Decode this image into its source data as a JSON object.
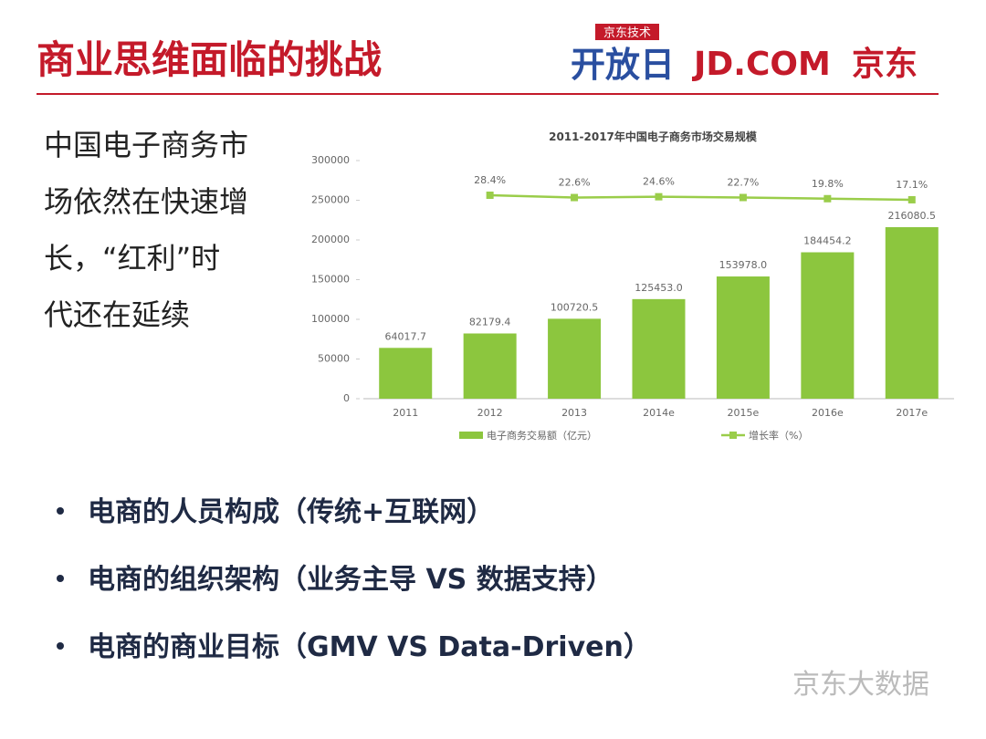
{
  "title": "商业思维面临的挑战",
  "logo": {
    "badge": "京东技术",
    "event": "开放日",
    "brand": "JD.COM",
    "brand_cn": "京东"
  },
  "side_text": [
    "中国电子商务市",
    "场依然在快速增",
    "长，“红利”时",
    "代还在延续"
  ],
  "bullets": [
    "电商的人员构成（传统+互联网）",
    "电商的组织架构（业务主导 VS 数据支持）",
    "电商的商业目标（GMV VS Data-Driven）"
  ],
  "watermark": "京东大数据",
  "chart_data": {
    "type": "bar",
    "title": "2011-2017年中国电子商务市场交易规模",
    "categories": [
      "2011",
      "2012",
      "2013",
      "2014e",
      "2015e",
      "2016e",
      "2017e"
    ],
    "series": [
      {
        "name": "电子商务交易额（亿元）",
        "type": "bar",
        "color": "#8cc63e",
        "values": [
          64017.7,
          82179.4,
          100720.5,
          125453.0,
          153978.0,
          184454.2,
          216080.5
        ],
        "value_labels": [
          "64017.7",
          "82179.4",
          "100720.5",
          "125453.0",
          "153978.0",
          "184454.2",
          "216080.5"
        ]
      },
      {
        "name": "增长率（%）",
        "type": "line",
        "axis": "y2",
        "color": "#9acd4a",
        "values": [
          null,
          28.4,
          22.6,
          24.6,
          22.7,
          19.8,
          17.1
        ],
        "value_labels": [
          null,
          "28.4%",
          "22.6%",
          "24.6%",
          "22.7%",
          "19.8%",
          "17.1%"
        ]
      }
    ],
    "ylim": [
      0,
      300000
    ],
    "yticks": [
      0,
      50000,
      100000,
      150000,
      200000,
      250000,
      300000
    ],
    "y2lim": [
      -480,
      115
    ],
    "legend": "bottom"
  }
}
